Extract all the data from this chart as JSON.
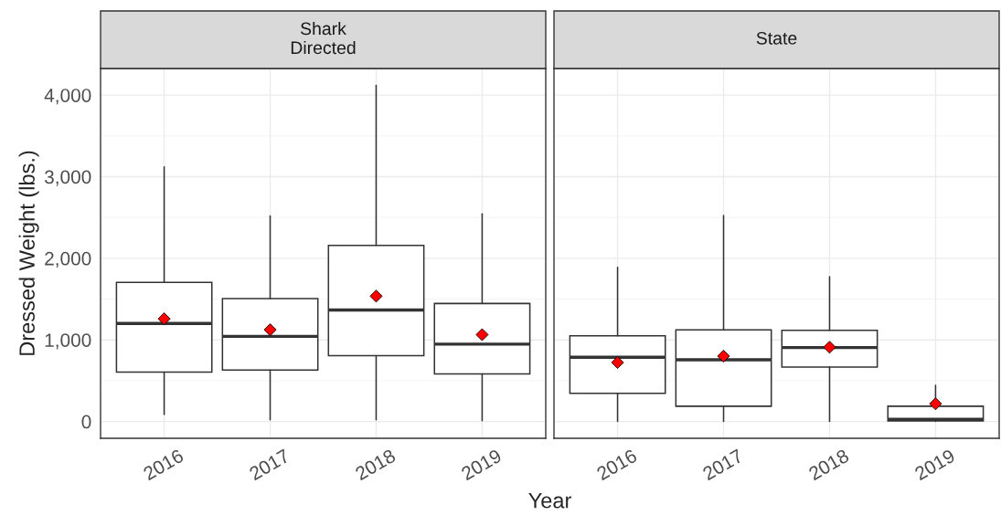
{
  "chart_data": [
    {
      "type": "box",
      "title": "Shark\nDirected",
      "ylabel": "Dressed Weight (lbs.)",
      "xlabel": "Year",
      "categories": [
        "2016",
        "2017",
        "2018",
        "2019"
      ],
      "boxes": [
        {
          "low": 86,
          "q1": 605,
          "median": 1202,
          "q3": 1704,
          "high": 3120,
          "mean": 1258
        },
        {
          "low": 21,
          "q1": 631,
          "median": 1043,
          "q3": 1506,
          "high": 2519,
          "mean": 1124
        },
        {
          "low": 21,
          "q1": 807,
          "median": 1365,
          "q3": 2159,
          "high": 4120,
          "mean": 1536
        },
        {
          "low": 9,
          "q1": 584,
          "median": 948,
          "q3": 1446,
          "high": 2545,
          "mean": 1064
        }
      ],
      "marker": "diamond",
      "ylim": [
        -206,
        4326
      ],
      "yticks": [
        {
          "value": 0,
          "label": "0"
        },
        {
          "value": 1000,
          "label": "1,000"
        },
        {
          "value": 2000,
          "label": "2,000"
        },
        {
          "value": 3000,
          "label": "3,000"
        },
        {
          "value": 4000,
          "label": "4,000"
        }
      ],
      "grid": true
    },
    {
      "type": "box",
      "title": "State",
      "categories": [
        "2016",
        "2017",
        "2018",
        "2019"
      ],
      "boxes": [
        {
          "low": 0,
          "q1": 345,
          "median": 787,
          "q3": 1049,
          "high": 1888,
          "mean": 723
        },
        {
          "low": 0,
          "q1": 187,
          "median": 757,
          "q3": 1124,
          "high": 2524,
          "mean": 801
        },
        {
          "low": 0,
          "q1": 667,
          "median": 906,
          "q3": 1116,
          "high": 1775,
          "mean": 910
        },
        {
          "low": 0,
          "q1": 7,
          "median": 26,
          "q3": 187,
          "high": 442,
          "mean": 217
        }
      ],
      "marker": "diamond",
      "ylim": [
        -206,
        4326
      ],
      "yticks": [
        {
          "value": 0,
          "label": null
        },
        {
          "value": 1000,
          "label": null
        },
        {
          "value": 2000,
          "label": null
        },
        {
          "value": 3000,
          "label": null
        },
        {
          "value": 4000,
          "label": null
        }
      ],
      "grid": true,
      "tick_labels": "x"
    }
  ]
}
